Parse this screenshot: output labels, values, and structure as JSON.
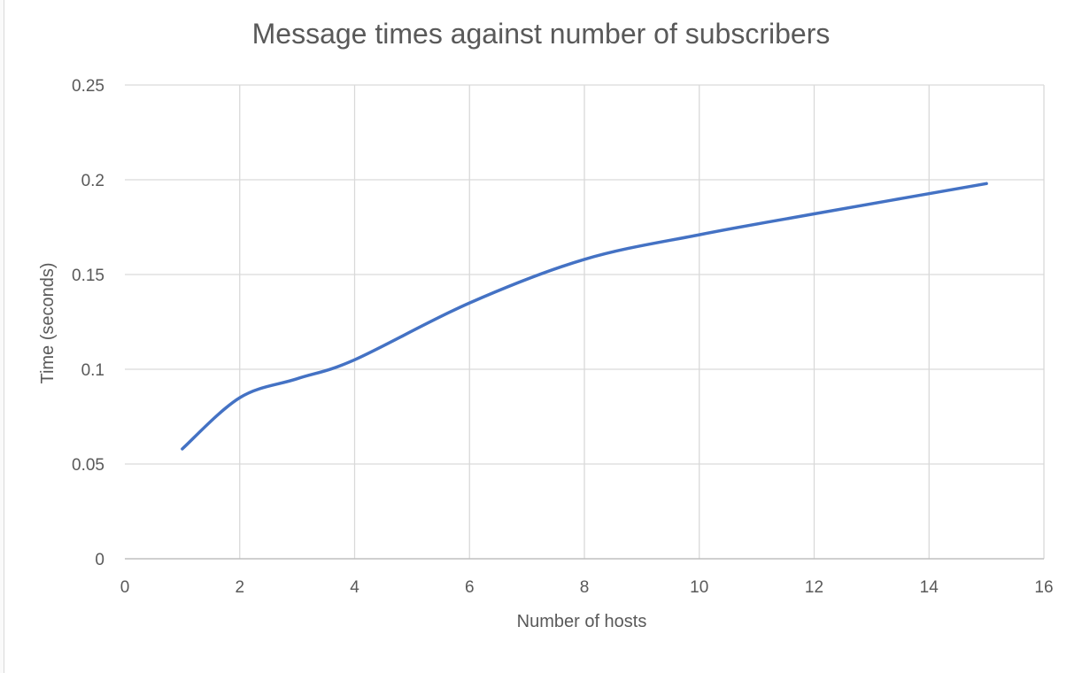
{
  "chart_data": {
    "type": "line",
    "title": "Message times against number of subscribers",
    "xlabel": "Number of hosts",
    "ylabel": "Time (seconds)",
    "xlim": [
      0,
      16
    ],
    "ylim": [
      0,
      0.25
    ],
    "x_ticks": [
      "0",
      "2",
      "4",
      "6",
      "8",
      "10",
      "12",
      "14",
      "16"
    ],
    "y_ticks": [
      "0",
      "0.05",
      "0.1",
      "0.15",
      "0.2",
      "0.25"
    ],
    "grid": true,
    "legend": "none",
    "series": [
      {
        "color": "#4472c4",
        "x": [
          1,
          2,
          3,
          4,
          6,
          8,
          10,
          12,
          15
        ],
        "y": [
          0.058,
          0.085,
          0.095,
          0.105,
          0.135,
          0.158,
          0.171,
          0.182,
          0.198
        ]
      }
    ]
  }
}
